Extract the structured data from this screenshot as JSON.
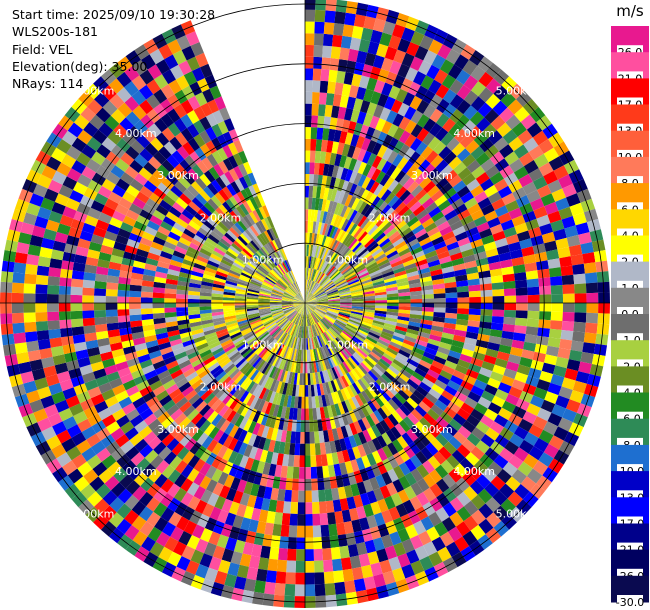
{
  "info": {
    "start_time": "Start time: 2025/09/10 19:30:28",
    "device": "WLS200s-181",
    "field": "Field: VEL",
    "elevation": "Elevation(deg): 35.00",
    "nrays": "NRays: 114"
  },
  "colorbar": {
    "unit": "m/s",
    "labels": [
      "26.0",
      "21.0",
      "17.0",
      "13.0",
      "10.0",
      "8.0",
      "6.0",
      "4.0",
      "2.0",
      "1.0",
      "0.0",
      "-1.0",
      "-2.0",
      "-4.0",
      "-6.0",
      "-8.0",
      "-10.0",
      "-13.0",
      "-17.0",
      "-21.0",
      "-26.0",
      "-30.0"
    ],
    "colors": [
      "#e8198f",
      "#ff4f9f",
      "#ff0000",
      "#ff3a1a",
      "#ff5f3a",
      "#ff7a5a",
      "#ff9900",
      "#ffd700",
      "#ffff00",
      "#b0b8c8",
      "#888888",
      "#6e6e6e",
      "#a8d040",
      "#6b8e23",
      "#228b22",
      "#2e8b57",
      "#1e6fd0",
      "#0000c8",
      "#0000ff",
      "#00008b",
      "#000060",
      "#0a0a50"
    ]
  },
  "chart_data": {
    "type": "ppi",
    "field": "VEL",
    "units": "m/s",
    "elevation_deg": 35.0,
    "nrays": 114,
    "range_rings_km": [
      1.0,
      2.0,
      3.0,
      4.0,
      5.0
    ],
    "ring_labels": [
      "1.00km",
      "2.00km",
      "3.00km",
      "4.00km",
      "5.00km"
    ],
    "max_range_km": 5.1,
    "missing_sector_deg": [
      338,
      360
    ],
    "clear_air_velocity_ms": [
      0.0,
      4.0
    ]
  }
}
